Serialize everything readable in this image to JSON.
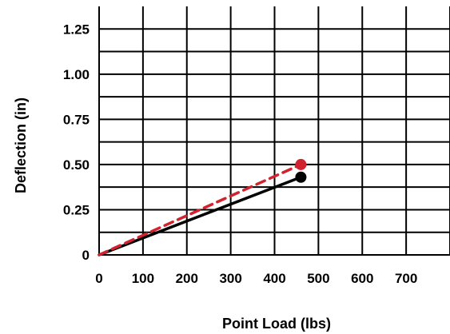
{
  "chart_data": {
    "type": "line",
    "xlabel": "Point Load (lbs)",
    "ylabel": "Deflection (in)",
    "xlim": [
      0,
      800
    ],
    "ylim": [
      0,
      1.375
    ],
    "x_ticks": [
      0,
      100,
      200,
      300,
      400,
      500,
      600,
      700
    ],
    "x_tick_labels": [
      "0",
      "100",
      "200",
      "300",
      "400",
      "500",
      "600",
      "700"
    ],
    "y_ticks": [
      0,
      0.25,
      0.5,
      0.75,
      1.0,
      1.25
    ],
    "y_tick_labels": [
      "0",
      "0.25",
      "0.50",
      "0.75",
      "1.00",
      "1.25"
    ],
    "grid": true,
    "series": [
      {
        "color": "#000000",
        "line_style": "solid",
        "marker": "circle",
        "points": [
          {
            "x": 0,
            "y": 0
          },
          {
            "x": 460,
            "y": 0.43
          }
        ]
      },
      {
        "color": "#d0222f",
        "line_style": "dashed",
        "marker": "circle",
        "points": [
          {
            "x": 0,
            "y": 0
          },
          {
            "x": 460,
            "y": 0.5
          }
        ]
      }
    ]
  }
}
